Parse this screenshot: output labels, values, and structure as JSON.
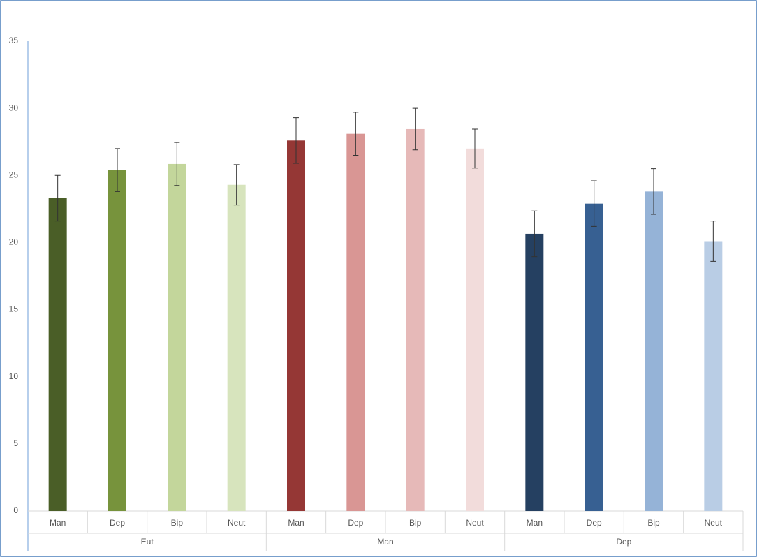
{
  "chart_data": {
    "type": "bar",
    "groups": [
      {
        "name": "Eut",
        "categories": [
          "Man",
          "Dep",
          "Bip",
          "Neut"
        ],
        "values": [
          23.3,
          25.4,
          25.85,
          24.3
        ],
        "errors": [
          1.7,
          1.6,
          1.6,
          1.5
        ],
        "colors": [
          "#4a5e27",
          "#77933c",
          "#c3d69b",
          "#d7e4bd"
        ]
      },
      {
        "name": "Man",
        "categories": [
          "Man",
          "Dep",
          "Bip",
          "Neut"
        ],
        "values": [
          27.6,
          28.1,
          28.45,
          27.0
        ],
        "errors": [
          1.7,
          1.6,
          1.55,
          1.45
        ],
        "colors": [
          "#953735",
          "#d99694",
          "#e6b9b8",
          "#f2dcdb"
        ]
      },
      {
        "name": "Dep",
        "categories": [
          "Man",
          "Dep",
          "Bip",
          "Neut"
        ],
        "values": [
          20.65,
          22.9,
          23.8,
          20.1
        ],
        "errors": [
          1.7,
          1.7,
          1.7,
          1.5
        ],
        "colors": [
          "#254061",
          "#376092",
          "#95b3d7",
          "#b9cde5"
        ]
      }
    ],
    "ylim": [
      0,
      35
    ],
    "yticks": [
      0,
      5,
      10,
      15,
      20,
      25,
      30,
      35
    ],
    "grid": false
  }
}
